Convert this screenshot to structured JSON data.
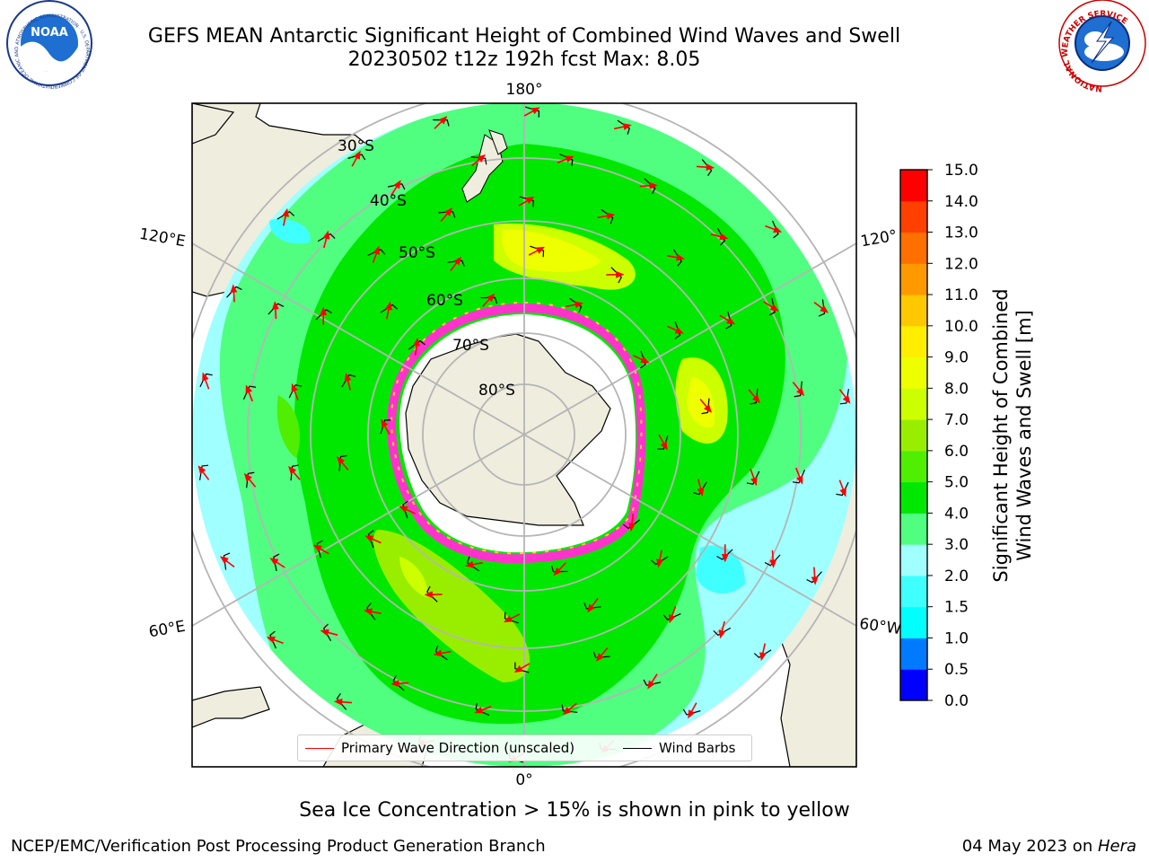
{
  "header": {
    "title_line1": "GEFS MEAN Antarctic Significant Height of Combined Wind Waves and Swell",
    "title_line2": "20230502 t12z 192h fcst   Max: 8.05"
  },
  "logos": {
    "noaa_text": "NOAA",
    "noaa_ring": "NATIONAL OCEANIC AND ATMOSPHERIC ADMINISTRATION · U.S. DEPARTMENT OF COMMERCE",
    "nws_ring": "NATIONAL WEATHER SERVICE"
  },
  "map": {
    "projection": "south-polar-stereographic",
    "lon_labels": [
      "180°",
      "120°E",
      "120°",
      "60°E",
      "60°W",
      "0°"
    ],
    "lat_labels": [
      "30°S",
      "40°S",
      "50°S",
      "60°S",
      "70°S",
      "80°S"
    ],
    "colors": {
      "land": "#efedde",
      "ice_edge_pink": "#ff33cc",
      "ice_edge_yellow": "#ffcc33",
      "arrows": "#ff0000",
      "barbs": "#000000",
      "grid": "#b5b5b5"
    }
  },
  "legend": {
    "primary_wave": "Primary Wave Direction (unscaled)",
    "wind_barbs": "Wind Barbs"
  },
  "colorbar": {
    "label_line1": "Significant Height of Combined",
    "label_line2": "Wind Waves and Swell [m]",
    "ticks": [
      "0.0",
      "0.5",
      "1.0",
      "1.5",
      "2.0",
      "3.0",
      "4.0",
      "5.0",
      "6.0",
      "7.0",
      "8.0",
      "9.0",
      "10.0",
      "11.0",
      "12.0",
      "13.0",
      "14.0",
      "15.0"
    ],
    "colors": [
      "#0000ff",
      "#007bff",
      "#00ffff",
      "#40ffff",
      "#a0ffff",
      "#50ff80",
      "#00e800",
      "#50ee00",
      "#99ee00",
      "#ccff00",
      "#eeff00",
      "#ffee00",
      "#ffc800",
      "#ff9900",
      "#ff7000",
      "#ff4000",
      "#ff0000"
    ]
  },
  "footer": {
    "subtitle": "Sea Ice Concentration > 15% is shown in pink to yellow",
    "left": "NCEP/EMC/Verification Post Processing Product Generation Branch",
    "right_date": "04 May 2023 on ",
    "right_machine": "Hera"
  }
}
